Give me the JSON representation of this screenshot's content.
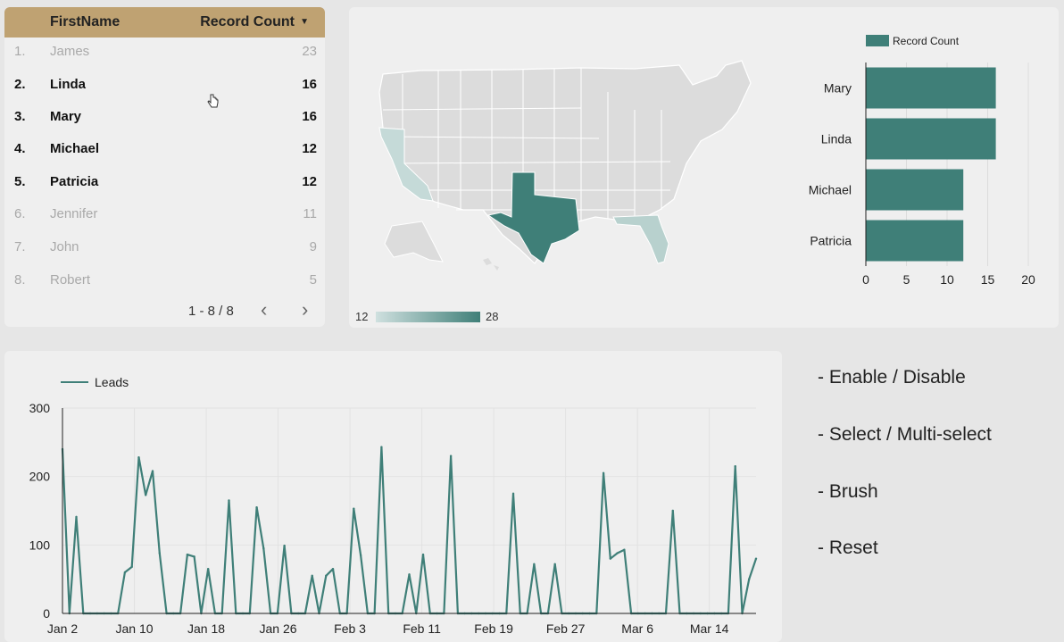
{
  "table": {
    "header_name": "FirstName",
    "header_count": "Record Count",
    "sort_icon": "▼",
    "rows": [
      {
        "idx": "1.",
        "name": "James",
        "value": "23"
      },
      {
        "idx": "2.",
        "name": "Linda",
        "value": "16"
      },
      {
        "idx": "3.",
        "name": "Mary",
        "value": "16"
      },
      {
        "idx": "4.",
        "name": "Michael",
        "value": "12"
      },
      {
        "idx": "5.",
        "name": "Patricia",
        "value": "12"
      },
      {
        "idx": "6.",
        "name": "Jennifer",
        "value": "11"
      },
      {
        "idx": "7.",
        "name": "John",
        "value": "9"
      },
      {
        "idx": "8.",
        "name": "Robert",
        "value": "5"
      }
    ],
    "pagination": "1 - 8 / 8",
    "prev_icon": "‹",
    "next_icon": "›"
  },
  "map": {
    "legend_min": "12",
    "legend_max": "28",
    "highlight_color": "#3f7f78",
    "light_color": "#c5dad8"
  },
  "notes": [
    "- Enable / Disable",
    "- Select / Multi-select",
    "- Brush",
    "- Reset"
  ],
  "chart_data": [
    {
      "type": "bar",
      "orientation": "horizontal",
      "categories": [
        "Mary",
        "Linda",
        "Michael",
        "Patricia"
      ],
      "series": [
        {
          "name": "Record Count",
          "values": [
            16,
            16,
            12,
            12
          ]
        }
      ],
      "xlim": [
        0,
        20
      ],
      "xticks": [
        "0",
        "5",
        "10",
        "15",
        "20"
      ],
      "color": "#3f7f78",
      "legend": "top"
    },
    {
      "type": "line",
      "series": [
        {
          "name": "Leads",
          "values": [
            240,
            0,
            141,
            0,
            0,
            0,
            0,
            0,
            0,
            60,
            68,
            228,
            173,
            208,
            88,
            0,
            0,
            0,
            86,
            83,
            0,
            65,
            0,
            0,
            165,
            0,
            0,
            0,
            155,
            95,
            0,
            0,
            99,
            0,
            0,
            0,
            55,
            0,
            55,
            65,
            0,
            0,
            153,
            85,
            0,
            0,
            243,
            0,
            0,
            0,
            57,
            0,
            86,
            0,
            0,
            0,
            230,
            0,
            0,
            0,
            0,
            0,
            0,
            0,
            0,
            175,
            0,
            0,
            72,
            0,
            0,
            72,
            0,
            0,
            0,
            0,
            0,
            0,
            205,
            80,
            88,
            93,
            0,
            0,
            0,
            0,
            0,
            0,
            150,
            0,
            0,
            0,
            0,
            0,
            0,
            0,
            0,
            215,
            0,
            50,
            80
          ]
        }
      ],
      "x_labels": [
        "Jan 2",
        "Jan 10",
        "Jan 18",
        "Jan 26",
        "Feb 3",
        "Feb 11",
        "Feb 19",
        "Feb 27",
        "Mar 6",
        "Mar 14"
      ],
      "ylim": [
        0,
        300
      ],
      "yticks": [
        "0",
        "100",
        "200",
        "300"
      ],
      "color": "#3f7f78",
      "legend": "top-left"
    }
  ]
}
